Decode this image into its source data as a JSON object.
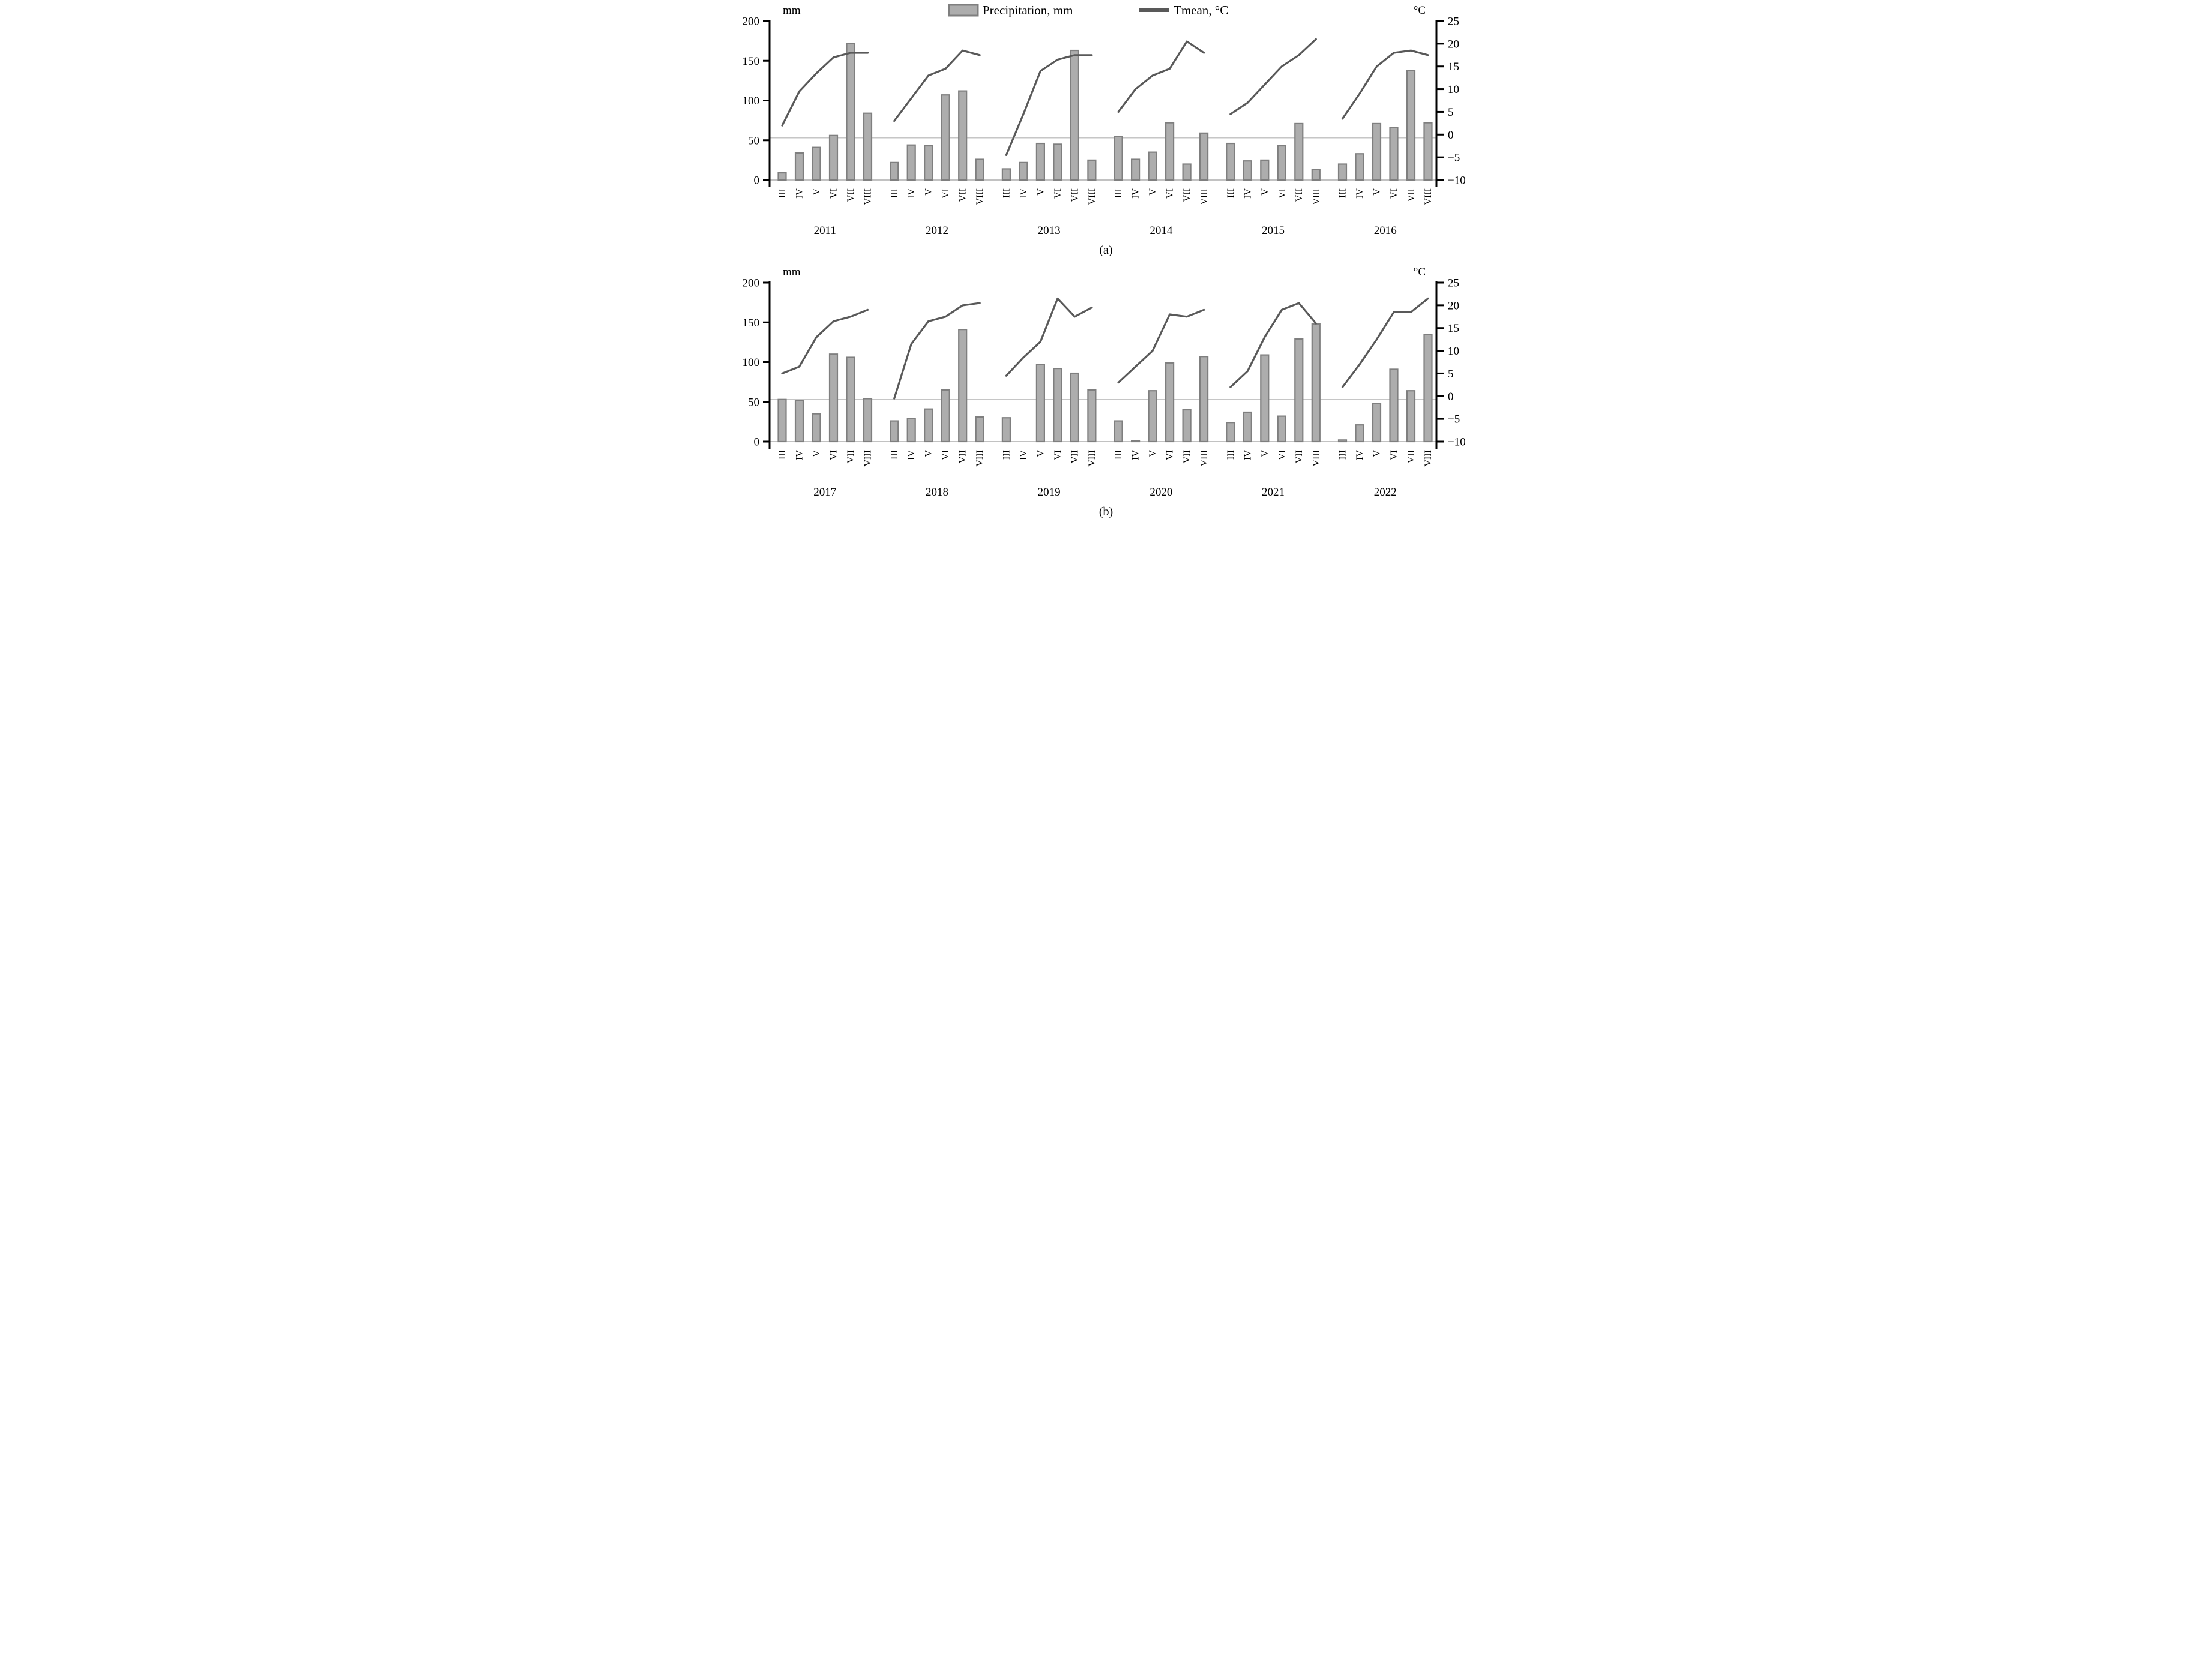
{
  "figure": {
    "caption_a": "(a)",
    "caption_b": "(b)"
  },
  "legend": {
    "items": [
      {
        "swatch": "bar-swatch-icon",
        "label": "Precipitation, mm"
      },
      {
        "swatch": "line-swatch-icon",
        "label": "Tmean, °C"
      }
    ],
    "position": "top-center-of-panel-a"
  },
  "colors": {
    "bar_fill": "#adadad",
    "bar_stroke": "#7f7f7f",
    "line": "#595959",
    "axis": "#000000",
    "gridline": "#b3b3b3",
    "baseline": "#9e9e9e"
  },
  "chart_data": [
    {
      "panel": "a",
      "type": "bar+line",
      "title": "",
      "unit_left": "mm",
      "unit_right": "°C",
      "legend_visible": true,
      "months": [
        "III",
        "IV",
        "V",
        "VI",
        "VII",
        "VIII"
      ],
      "ylim_left": [
        0,
        200
      ],
      "ylim_right": [
        -10,
        25
      ],
      "yticks_left": [
        "0",
        "50",
        "100",
        "150",
        "200"
      ],
      "yticks_right": [
        "−10",
        "−5",
        "0",
        "5",
        "10",
        "15",
        "20",
        "25"
      ],
      "gridline_mm": 53,
      "grid": "single-horizontal-line",
      "series_names": [
        "Precipitation, mm",
        "Tmean, °C"
      ],
      "years": [
        {
          "year": "2011",
          "precipitation_mm": [
            9,
            34,
            41,
            56,
            172,
            84
          ],
          "tmean_c": [
            2,
            9.5,
            13.5,
            17,
            18,
            18
          ]
        },
        {
          "year": "2012",
          "precipitation_mm": [
            22,
            44,
            43,
            107,
            112,
            26
          ],
          "tmean_c": [
            3,
            8,
            13,
            14.5,
            18.5,
            17.5
          ]
        },
        {
          "year": "2013",
          "precipitation_mm": [
            14,
            22,
            46,
            45,
            163,
            25
          ],
          "tmean_c": [
            -4.5,
            4.5,
            14,
            16.5,
            17.5,
            17.5
          ]
        },
        {
          "year": "2014",
          "precipitation_mm": [
            55,
            26,
            35,
            72,
            20,
            59
          ],
          "tmean_c": [
            5,
            10,
            13,
            14.5,
            20.5,
            18
          ]
        },
        {
          "year": "2015",
          "precipitation_mm": [
            46,
            24,
            25,
            43,
            71,
            13
          ],
          "tmean_c": [
            4.5,
            7,
            11,
            15,
            17.5,
            21
          ]
        },
        {
          "year": "2016",
          "precipitation_mm": [
            20,
            33,
            71,
            66,
            138,
            72
          ],
          "tmean_c": [
            3.5,
            9,
            15,
            18,
            18.5,
            17.5
          ]
        }
      ]
    },
    {
      "panel": "b",
      "type": "bar+line",
      "title": "",
      "unit_left": "mm",
      "unit_right": "°C",
      "legend_visible": false,
      "months": [
        "III",
        "IV",
        "V",
        "VI",
        "VII",
        "VIII"
      ],
      "ylim_left": [
        0,
        200
      ],
      "ylim_right": [
        -10,
        25
      ],
      "yticks_left": [
        "0",
        "50",
        "100",
        "150",
        "200"
      ],
      "yticks_right": [
        "−10",
        "−5",
        "0",
        "5",
        "10",
        "15",
        "20",
        "25"
      ],
      "gridline_mm": 53,
      "grid": "single-horizontal-line",
      "series_names": [
        "Precipitation, mm",
        "Tmean, °C"
      ],
      "years": [
        {
          "year": "2017",
          "precipitation_mm": [
            53,
            52,
            35,
            110,
            106,
            54
          ],
          "tmean_c": [
            5,
            6.5,
            13,
            16.5,
            17.5,
            19
          ]
        },
        {
          "year": "2018",
          "precipitation_mm": [
            26,
            29,
            41,
            65,
            141,
            31
          ],
          "tmean_c": [
            -0.5,
            11.5,
            16.5,
            17.5,
            20,
            20.5
          ]
        },
        {
          "year": "2019",
          "precipitation_mm": [
            30,
            0,
            97,
            92,
            86,
            65
          ],
          "tmean_c": [
            4.5,
            8.5,
            12,
            21.5,
            17.5,
            19.5
          ]
        },
        {
          "year": "2020",
          "precipitation_mm": [
            26,
            1,
            64,
            99,
            40,
            107
          ],
          "tmean_c": [
            3,
            6.5,
            10,
            18,
            17.5,
            19
          ]
        },
        {
          "year": "2021",
          "precipitation_mm": [
            24,
            37,
            109,
            32,
            129,
            148
          ],
          "tmean_c": [
            2,
            5.5,
            13,
            19,
            20.5,
            16
          ]
        },
        {
          "year": "2022",
          "precipitation_mm": [
            2,
            21,
            48,
            91,
            64,
            135
          ],
          "tmean_c": [
            2,
            7,
            12.5,
            18.5,
            18.5,
            21.5
          ]
        }
      ]
    }
  ]
}
